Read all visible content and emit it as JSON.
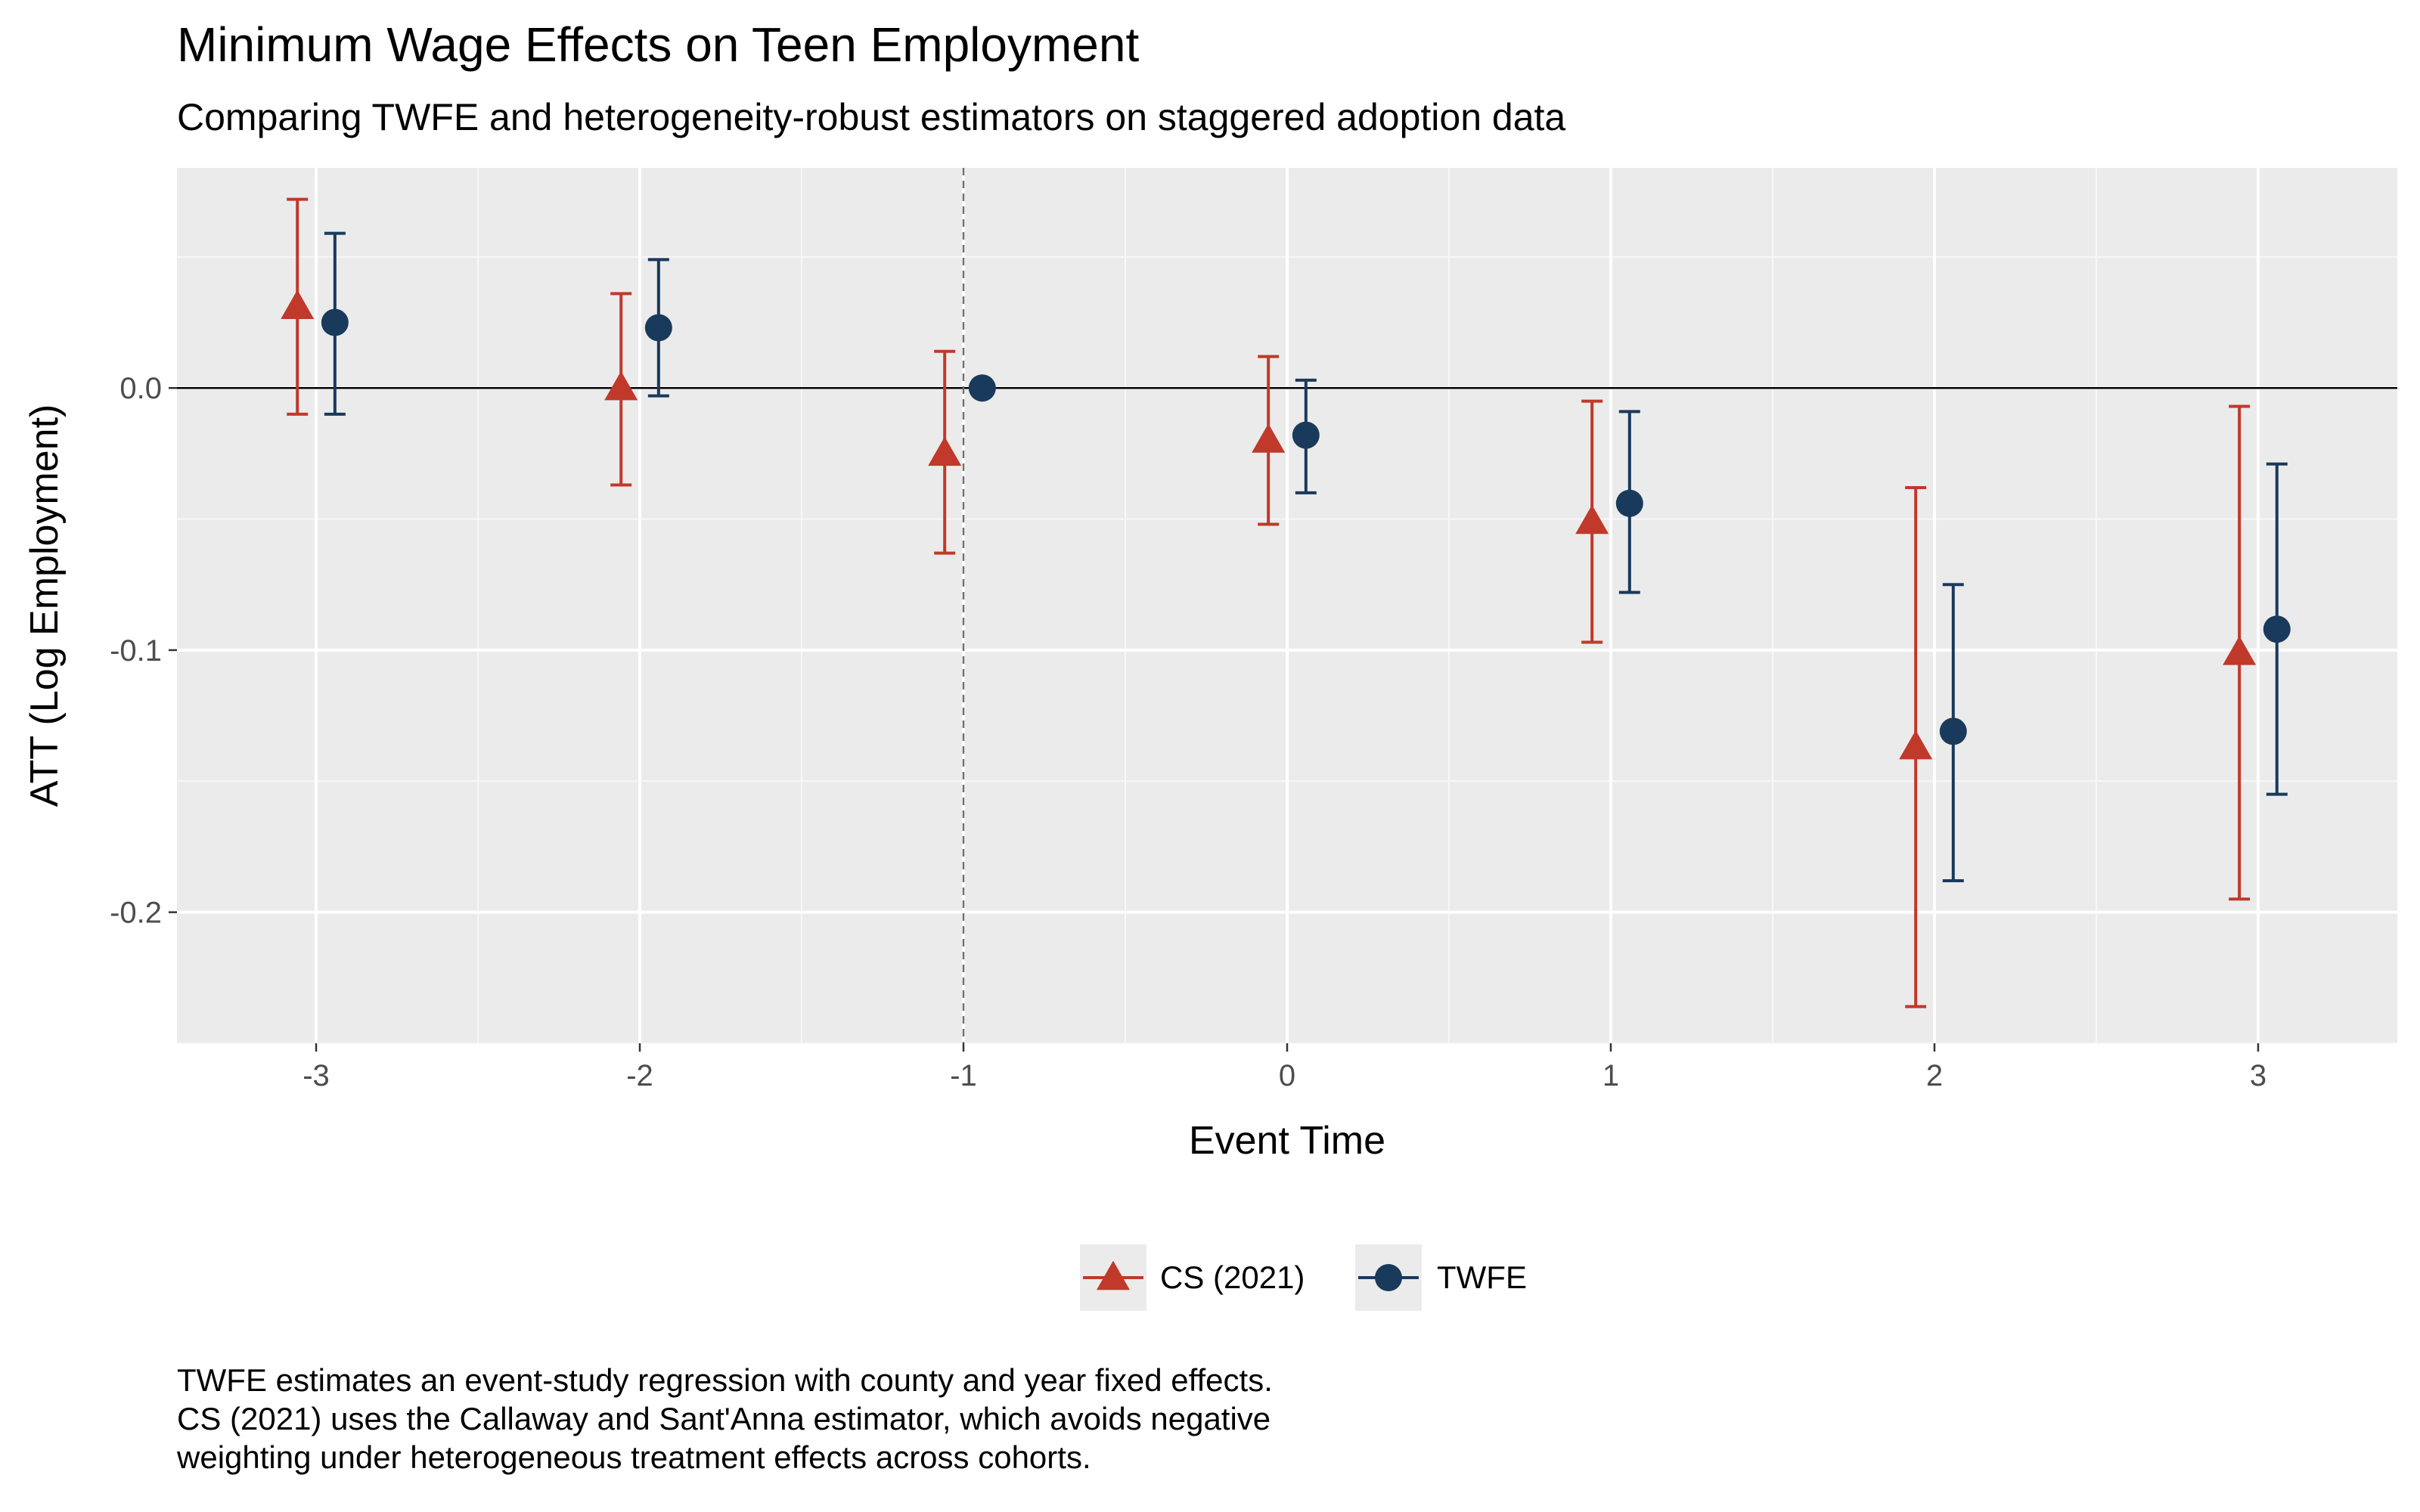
{
  "chart_data": {
    "type": "scatter",
    "title": "Minimum Wage Effects on Teen Employment",
    "subtitle": "Comparing TWFE and heterogeneity-robust estimators on staggered adoption data",
    "xlabel": "Event Time",
    "ylabel": "ATT (Log Employment)",
    "x_ticks": [
      "-3",
      "-2",
      "-1",
      "0",
      "1",
      "2",
      "3"
    ],
    "y_ticks": [
      "0.0",
      "-0.1",
      "-0.2"
    ],
    "xlim": [
      -3.43,
      3.43
    ],
    "ylim": [
      -0.25,
      0.084
    ],
    "grid": true,
    "reference_lines": {
      "horizontal_y": 0.0,
      "vertical_dashed_x": -1
    },
    "legend_position": "bottom",
    "series": [
      {
        "name": "CS (2021)",
        "marker": "triangle",
        "color": "#c0392b",
        "points": [
          {
            "x": -3,
            "y": 0.031,
            "lo": -0.01,
            "hi": 0.072
          },
          {
            "x": -2,
            "y": 0.0,
            "lo": -0.037,
            "hi": 0.036
          },
          {
            "x": -1,
            "y": -0.025,
            "lo": -0.063,
            "hi": 0.014
          },
          {
            "x": 0,
            "y": -0.02,
            "lo": -0.052,
            "hi": 0.012
          },
          {
            "x": 1,
            "y": -0.051,
            "lo": -0.097,
            "hi": -0.005
          },
          {
            "x": 2,
            "y": -0.137,
            "lo": -0.236,
            "hi": -0.038
          },
          {
            "x": 3,
            "y": -0.101,
            "lo": -0.195,
            "hi": -0.007
          }
        ]
      },
      {
        "name": "TWFE",
        "marker": "circle",
        "color": "#1a3a5c",
        "points": [
          {
            "x": -3,
            "y": 0.025,
            "lo": -0.01,
            "hi": 0.059
          },
          {
            "x": -2,
            "y": 0.023,
            "lo": -0.003,
            "hi": 0.049
          },
          {
            "x": -1,
            "y": 0.0,
            "lo": null,
            "hi": null
          },
          {
            "x": 0,
            "y": -0.018,
            "lo": -0.04,
            "hi": 0.003
          },
          {
            "x": 1,
            "y": -0.044,
            "lo": -0.078,
            "hi": -0.009
          },
          {
            "x": 2,
            "y": -0.131,
            "lo": -0.188,
            "hi": -0.075
          },
          {
            "x": 3,
            "y": -0.092,
            "lo": -0.155,
            "hi": -0.029
          }
        ]
      }
    ]
  },
  "caption": [
    "TWFE estimates an event-study regression with county and year fixed effects.",
    "CS (2021) uses the Callaway and Sant'Anna estimator, which avoids negative",
    "weighting under heterogeneous treatment effects across cohorts."
  ]
}
